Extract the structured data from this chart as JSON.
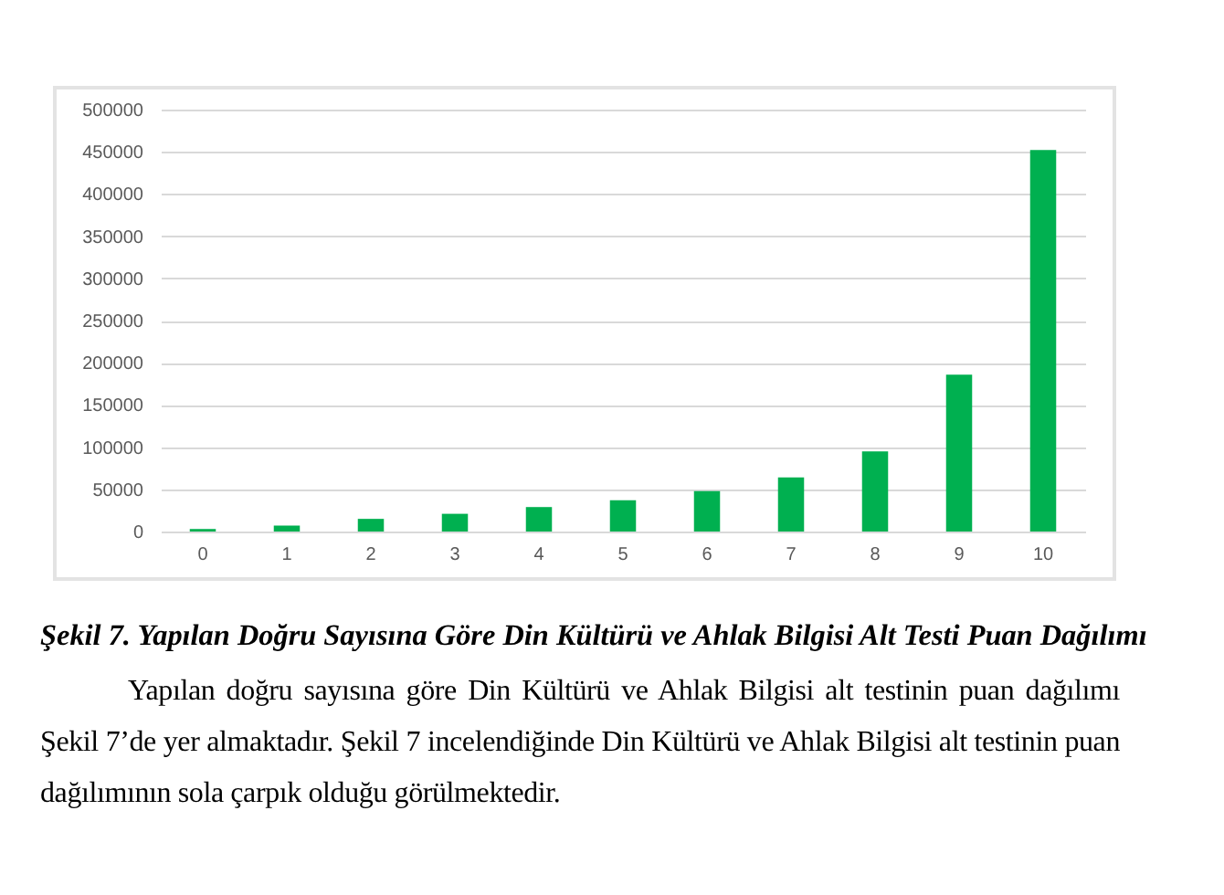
{
  "chart_data": {
    "type": "bar",
    "title": "Şekil 7. Yapılan Doğru Sayısına Göre Din Kültürü ve Ahlak Bilgisi Alt Testi Puan Dağılımı",
    "annotations": [
      "Yapılan doğru sayısına göre Din Kültürü ve Ahlak Bilgisi alt testinin puan dağılımı Şekil 7’de yer almaktadır. Şekil 7 incelendiğinde Din Kültürü ve Ahlak Bilgisi alt testinin puan dağılımının sola çarpık olduğu görülmektedir."
    ],
    "categories": [
      "0",
      "1",
      "2",
      "3",
      "4",
      "5",
      "6",
      "7",
      "8",
      "9",
      "10"
    ],
    "values": [
      3000,
      7000,
      15000,
      21000,
      29000,
      37000,
      48000,
      64000,
      95000,
      186000,
      452000
    ],
    "color": "#00b050",
    "ylim": [
      0,
      500000
    ],
    "yticks": [
      0,
      50000,
      100000,
      150000,
      200000,
      250000,
      300000,
      350000,
      400000,
      450000,
      500000
    ],
    "grid": "y"
  }
}
